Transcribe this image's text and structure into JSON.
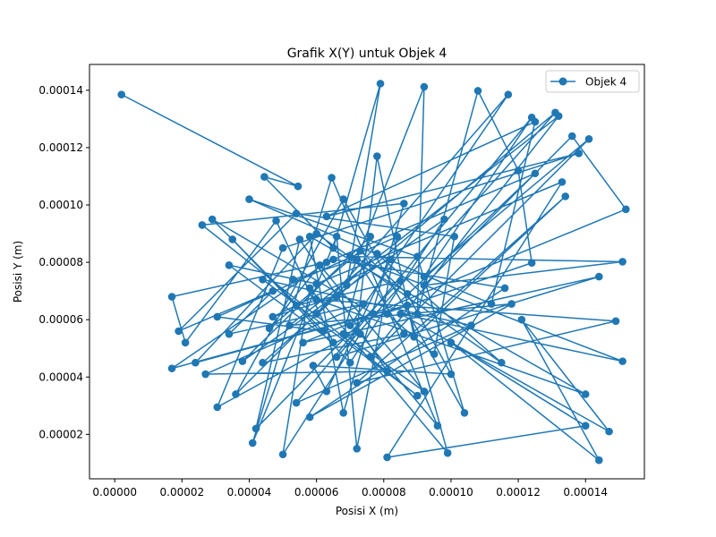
{
  "chart_data": {
    "type": "line",
    "title": "Grafik X(Y) untuk Objek 4",
    "xlabel": "Posisi X (m)",
    "ylabel": "Posisi Y (m)",
    "xlim": [
      -7.5e-06,
      0.0001575
    ],
    "ylim": [
      4.5e-06,
      0.000149
    ],
    "x_ticks": [
      "0.00000",
      "0.00002",
      "0.00004",
      "0.00006",
      "0.00008",
      "0.00010",
      "0.00012",
      "0.00014"
    ],
    "y_ticks": [
      "0.00002",
      "0.00004",
      "0.00006",
      "0.00008",
      "0.00010",
      "0.00012",
      "0.00014"
    ],
    "x_tick_values": [
      0,
      2e-05,
      4e-05,
      6e-05,
      8e-05,
      0.0001,
      0.00012,
      0.00014
    ],
    "y_tick_values": [
      2e-05,
      4e-05,
      6e-05,
      8e-05,
      0.0001,
      0.00012,
      0.00014
    ],
    "grid": false,
    "legend": {
      "position": "top-right"
    },
    "series": [
      {
        "name": "Objek 4",
        "color": "#1f77b4",
        "marker": "circle",
        "points": [
          [
            2e-06,
            0.0001385
          ],
          [
            5.45e-05,
            0.0001065
          ],
          [
            4.45e-05,
            0.0001098
          ],
          [
            6.5e-05,
            8.5e-05
          ],
          [
            7.9e-05,
            0.0001423
          ],
          [
            6.9e-05,
            7.2e-05
          ],
          [
            9.2e-05,
            0.0001412
          ],
          [
            9e-05,
            6.2e-05
          ],
          [
            0.000108,
            0.0001398
          ],
          [
            0.00012,
            0.000112
          ],
          [
            0.000124,
            7.98e-05
          ],
          [
            7e-05,
            5.8e-05
          ],
          [
            0.000117,
            0.0001385
          ],
          [
            6e-05,
            6.2e-05
          ],
          [
            0.000131,
            0.0001322
          ],
          [
            6.6e-05,
            4.7e-05
          ],
          [
            0.000144,
            7.5e-05
          ],
          [
            5.6e-05,
            5.2e-05
          ],
          [
            0.000152,
            9.85e-05
          ],
          [
            0.000136,
            0.000124
          ],
          [
            9.2e-05,
            7.2e-05
          ],
          [
            0.000151,
            8.02e-05
          ],
          [
            7e-05,
            8.2e-05
          ],
          [
            0.000151,
            4.55e-05
          ],
          [
            8.5e-05,
            6.2e-05
          ],
          [
            0.000147,
            2.1e-05
          ],
          [
            0.000121,
            6e-05
          ],
          [
            0.000144,
            1.1e-05
          ],
          [
            0.0001,
            5.2e-05
          ],
          [
            0.00014,
            2.3e-05
          ],
          [
            8.1e-05,
            1.2e-05
          ],
          [
            0.000133,
            0.000108
          ],
          [
            6e-05,
            7.25e-05
          ],
          [
            3.4e-05,
            7.9e-05
          ],
          [
            6.5e-05,
            5.2e-05
          ],
          [
            4.8e-05,
            9.45e-05
          ],
          [
            2.1e-05,
            5.2e-05
          ],
          [
            1.7e-05,
            6.8e-05
          ],
          [
            6.3e-05,
            8e-05
          ],
          [
            1.7e-05,
            4.3e-05
          ],
          [
            7.7e-05,
            6.2e-05
          ],
          [
            2.9e-05,
            9.5e-05
          ],
          [
            6.2e-05,
            5.6e-05
          ],
          [
            3.05e-05,
            6.1e-05
          ],
          [
            8.4e-05,
            8.9e-05
          ],
          [
            7.2e-05,
            1.5e-05
          ],
          [
            6.6e-05,
            8.9e-05
          ],
          [
            4.1e-05,
            1.7e-05
          ],
          [
            6.45e-05,
            0.0001095
          ],
          [
            9.6e-05,
            2.3e-05
          ],
          [
            7.3e-05,
            5.5e-05
          ],
          [
            5e-05,
            1.3e-05
          ],
          [
            5.8e-05,
            7.1e-05
          ],
          [
            9.9e-05,
            1.35e-05
          ],
          [
            8.7e-05,
            6.5e-05
          ],
          [
            2.4e-05,
            4.5e-05
          ],
          [
            6e-05,
            9e-05
          ],
          [
            0.000115,
            4.5e-05
          ],
          [
            7.8e-05,
            8.3e-05
          ],
          [
            3.6e-05,
            3.4e-05
          ],
          [
            6.8e-05,
            0.000102
          ],
          [
            0.000104,
            2.75e-05
          ],
          [
            9e-05,
            8.2e-05
          ],
          [
            4e-05,
            0.000102
          ],
          [
            0.000112,
            6.55e-05
          ],
          [
            0.000125,
            0.000129
          ],
          [
            6.3e-05,
            9.6e-05
          ],
          [
            0.000138,
            0.000118
          ],
          [
            5e-05,
            8.5e-05
          ],
          [
            3.05e-05,
            2.95e-05
          ],
          [
            7.2e-05,
            5.6e-05
          ],
          [
            7.8e-05,
            0.000117
          ],
          [
            8.9e-05,
            5.4e-05
          ],
          [
            0.000134,
            0.000103
          ],
          [
            7.2e-05,
            3.8e-05
          ],
          [
            0.000149,
            5.95e-05
          ],
          [
            6e-05,
            6.7e-05
          ],
          [
            0.00014,
            3.4e-05
          ],
          [
            5.8e-05,
            8.9e-05
          ],
          [
            6.8e-05,
            2.75e-05
          ],
          [
            8.6e-05,
            0.0001005
          ],
          [
            2.6e-05,
            9.3e-05
          ],
          [
            9e-05,
            3.35e-05
          ],
          [
            4.4e-05,
            7.4e-05
          ],
          [
            0.000106,
            5.8e-05
          ],
          [
            5.4e-05,
            3.1e-05
          ],
          [
            0.000124,
            0.0001305
          ],
          [
            9.2e-05,
            7.5e-05
          ],
          [
            0.000141,
            0.000123
          ],
          [
            7.6e-05,
            4.7e-05
          ],
          [
            0.000132,
            0.000131
          ],
          [
            5.2e-05,
            5.8e-05
          ],
          [
            0.000118,
            6.55e-05
          ],
          [
            5.8e-05,
            2.6e-05
          ],
          [
            0.000116,
            7.1e-05
          ],
          [
            6.5e-05,
            8.1e-05
          ],
          [
            0.000125,
            0.000111
          ],
          [
            8.1e-05,
            6.2e-05
          ],
          [
            9.5e-05,
            4.8e-05
          ],
          [
            0.000101,
            8.9e-05
          ],
          [
            5.4e-05,
            9.7e-05
          ],
          [
            1.9e-05,
            5.6e-05
          ],
          [
            4.7e-05,
            7e-05
          ],
          [
            3.4e-05,
            5.5e-05
          ],
          [
            7.4e-05,
            6.55e-05
          ],
          [
            2.7e-05,
            4.1e-05
          ],
          [
            8.1e-05,
            4.2e-05
          ],
          [
            5.5e-05,
            8.8e-05
          ],
          [
            4.2e-05,
            2.2e-05
          ],
          [
            8.5e-05,
            7.35e-05
          ],
          [
            5.4e-05,
            6.5e-05
          ],
          [
            3.5e-05,
            8.8e-05
          ],
          [
            7e-05,
            4.5e-05
          ],
          [
            9.8e-05,
            9.5e-05
          ],
          [
            3.8e-05,
            4.55e-05
          ],
          [
            7.6e-05,
            8.9e-05
          ],
          [
            6.8e-05,
            5.5e-05
          ],
          [
            9.2e-05,
            3.5e-05
          ],
          [
            6.1e-05,
            7.9e-05
          ],
          [
            4.6e-05,
            5.7e-05
          ],
          [
            7.3e-05,
            8.4e-05
          ],
          [
            8.7e-05,
            6.9e-05
          ],
          [
            0.0001,
            4.1e-05
          ],
          [
            5.9e-05,
            4.4e-05
          ],
          [
            6.3e-05,
            3.5e-05
          ],
          [
            8.2e-05,
            8.1e-05
          ],
          [
            4.7e-05,
            6.1e-05
          ],
          [
            6.6e-05,
            6.8e-05
          ],
          [
            4.4e-05,
            4.5e-05
          ],
          [
            8.6e-05,
            5.5e-05
          ],
          [
            7.2e-05,
            8.1e-05
          ],
          [
            5.3e-05,
            7.4e-05
          ]
        ]
      }
    ]
  }
}
